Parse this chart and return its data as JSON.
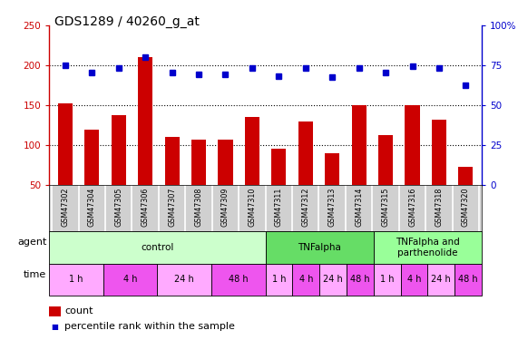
{
  "title": "GDS1289 / 40260_g_at",
  "samples": [
    "GSM47302",
    "GSM47304",
    "GSM47305",
    "GSM47306",
    "GSM47307",
    "GSM47308",
    "GSM47309",
    "GSM47310",
    "GSM47311",
    "GSM47312",
    "GSM47313",
    "GSM47314",
    "GSM47315",
    "GSM47316",
    "GSM47318",
    "GSM47320"
  ],
  "counts": [
    152,
    120,
    138,
    210,
    111,
    107,
    107,
    135,
    96,
    130,
    90,
    150,
    113,
    150,
    132,
    73
  ],
  "percentiles": [
    75.0,
    70.5,
    73.5,
    80.0,
    70.5,
    69.5,
    69.5,
    73.5,
    68.5,
    73.5,
    67.5,
    73.5,
    70.5,
    74.5,
    73.5,
    62.5
  ],
  "ylim_left": [
    50,
    250
  ],
  "ylim_right": [
    0,
    100
  ],
  "yticks_left": [
    50,
    100,
    150,
    200,
    250
  ],
  "yticks_right": [
    0,
    25,
    50,
    75,
    100
  ],
  "bar_color": "#cc0000",
  "dot_color": "#0000cc",
  "hgrid_values": [
    100,
    150,
    200
  ],
  "agent_groups": [
    {
      "label": "control",
      "start": 0,
      "end": 8,
      "color": "#ccffcc"
    },
    {
      "label": "TNFalpha",
      "start": 8,
      "end": 12,
      "color": "#66dd66"
    },
    {
      "label": "TNFalpha and\nparthenolide",
      "start": 12,
      "end": 16,
      "color": "#99ff99"
    }
  ],
  "time_groups": [
    {
      "label": "1 h",
      "start": 0,
      "end": 2,
      "color": "#ffaaff"
    },
    {
      "label": "4 h",
      "start": 2,
      "end": 4,
      "color": "#ee55ee"
    },
    {
      "label": "24 h",
      "start": 4,
      "end": 6,
      "color": "#ffaaff"
    },
    {
      "label": "48 h",
      "start": 6,
      "end": 8,
      "color": "#ee55ee"
    },
    {
      "label": "1 h",
      "start": 8,
      "end": 9,
      "color": "#ffaaff"
    },
    {
      "label": "4 h",
      "start": 9,
      "end": 10,
      "color": "#ee55ee"
    },
    {
      "label": "24 h",
      "start": 10,
      "end": 11,
      "color": "#ffaaff"
    },
    {
      "label": "48 h",
      "start": 11,
      "end": 12,
      "color": "#ee55ee"
    },
    {
      "label": "1 h",
      "start": 12,
      "end": 13,
      "color": "#ffaaff"
    },
    {
      "label": "4 h",
      "start": 13,
      "end": 14,
      "color": "#ee55ee"
    },
    {
      "label": "24 h",
      "start": 14,
      "end": 15,
      "color": "#ffaaff"
    },
    {
      "label": "48 h",
      "start": 15,
      "end": 16,
      "color": "#ee55ee"
    }
  ],
  "sample_bg_color": "#d0d0d0",
  "sample_divider_color": "#ffffff",
  "ylabel_left_color": "#cc0000",
  "ylabel_right_color": "#0000cc",
  "legend_count_color": "#cc0000",
  "legend_dot_color": "#0000cc"
}
